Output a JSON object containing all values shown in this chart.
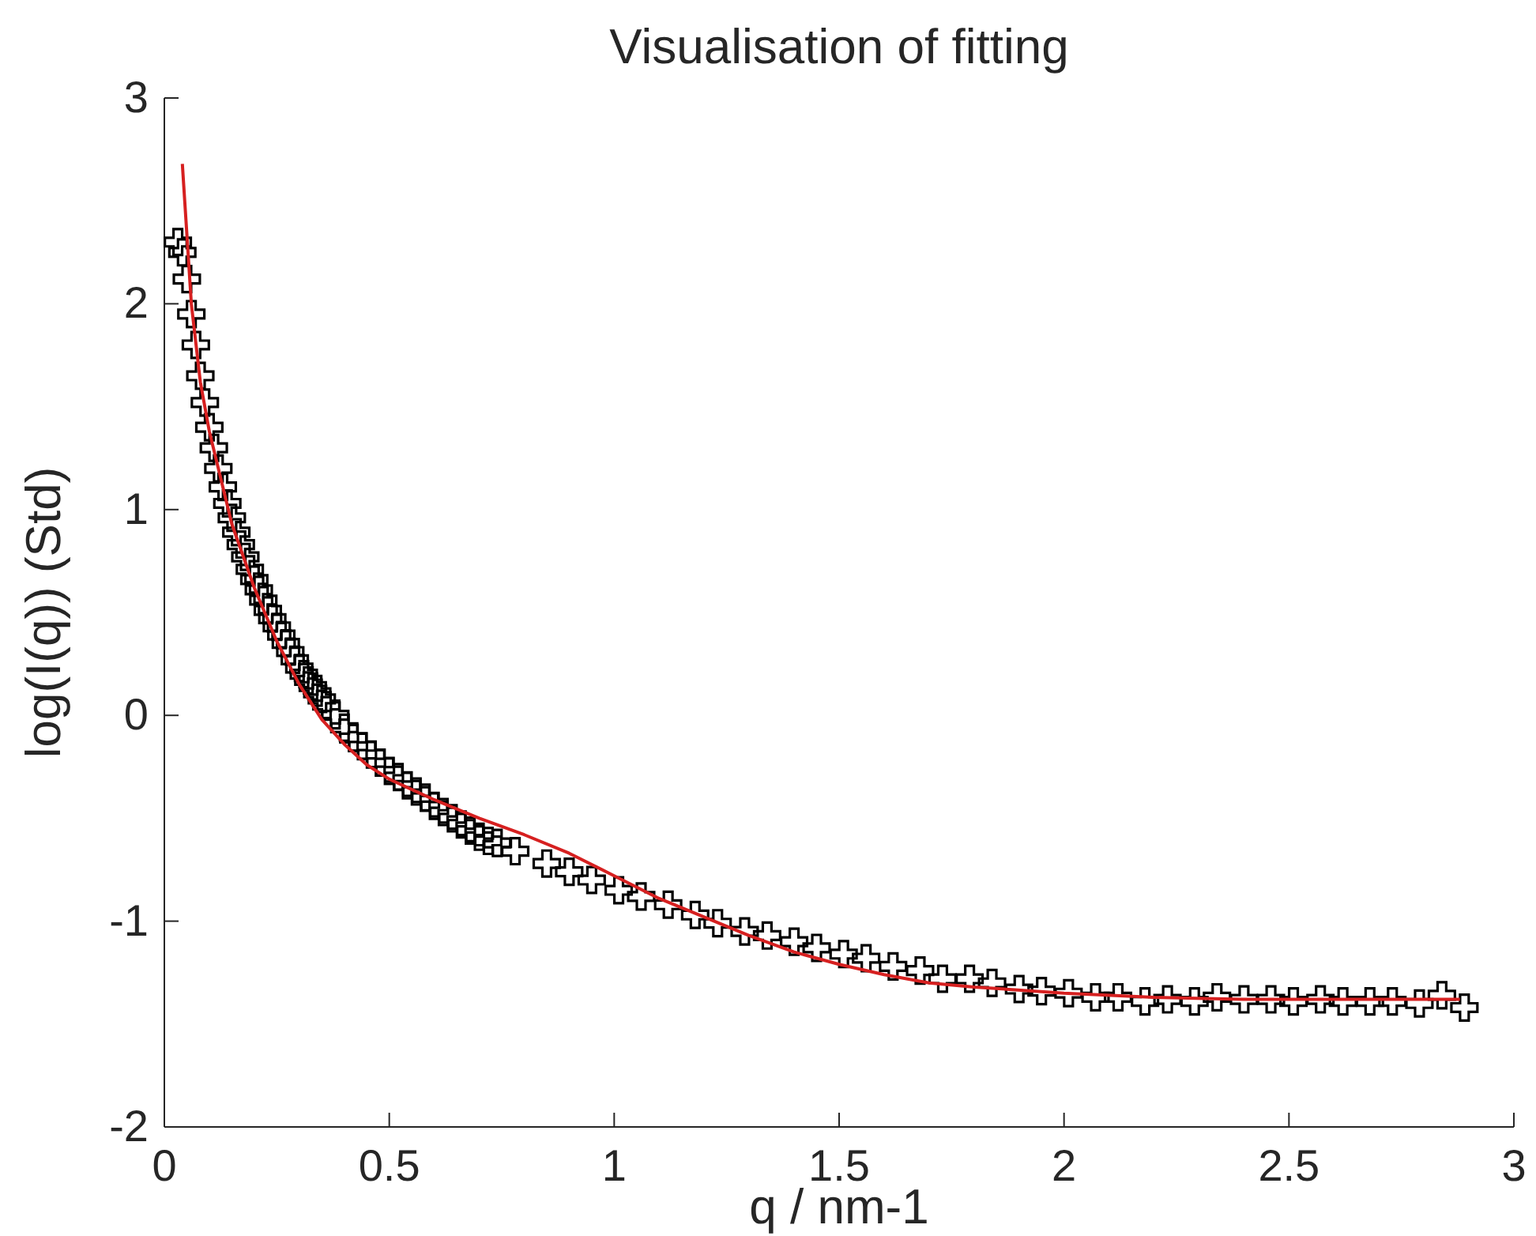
{
  "chart_data": {
    "type": "scatter",
    "title": "Visualisation of fitting",
    "xlabel": "q / nm-1",
    "ylabel": "log(I(q)) (Std)",
    "xlim": [
      0,
      3
    ],
    "ylim": [
      -2,
      3
    ],
    "xticks": [
      0,
      0.5,
      1,
      1.5,
      2,
      2.5,
      3
    ],
    "yticks": [
      -2,
      -1,
      0,
      1,
      2,
      3
    ],
    "grid": false,
    "series": [
      {
        "marker": "cross",
        "color": "#000000",
        "x": [
          0.03,
          0.04,
          0.05,
          0.06,
          0.07,
          0.08,
          0.09,
          0.1,
          0.11,
          0.12,
          0.13,
          0.14,
          0.15,
          0.16,
          0.17,
          0.18,
          0.19,
          0.2,
          0.21,
          0.22,
          0.23,
          0.24,
          0.25,
          0.26,
          0.27,
          0.28,
          0.29,
          0.3,
          0.31,
          0.32,
          0.33,
          0.34,
          0.35,
          0.36,
          0.38,
          0.4,
          0.42,
          0.44,
          0.46,
          0.48,
          0.5,
          0.52,
          0.54,
          0.56,
          0.58,
          0.6,
          0.62,
          0.64,
          0.66,
          0.68,
          0.7,
          0.72,
          0.74,
          0.78,
          0.85,
          0.9,
          0.95,
          1.01,
          1.06,
          1.12,
          1.18,
          1.23,
          1.29,
          1.34,
          1.4,
          1.45,
          1.51,
          1.56,
          1.62,
          1.68,
          1.73,
          1.79,
          1.84,
          1.9,
          1.95,
          2.01,
          2.07,
          2.12,
          2.18,
          2.23,
          2.29,
          2.34,
          2.4,
          2.46,
          2.51,
          2.57,
          2.62,
          2.68,
          2.73,
          2.79,
          2.84,
          2.89
        ],
        "values": [
          2.3,
          2.25,
          2.12,
          1.95,
          1.8,
          1.65,
          1.52,
          1.4,
          1.3,
          1.2,
          1.11,
          1.03,
          0.96,
          0.89,
          0.83,
          0.77,
          0.71,
          0.66,
          0.61,
          0.56,
          0.51,
          0.47,
          0.43,
          0.39,
          0.35,
          0.31,
          0.27,
          0.23,
          0.2,
          0.17,
          0.14,
          0.11,
          0.08,
          0.05,
          0.0,
          -0.06,
          -0.11,
          -0.15,
          -0.19,
          -0.23,
          -0.27,
          -0.3,
          -0.34,
          -0.37,
          -0.4,
          -0.44,
          -0.47,
          -0.5,
          -0.53,
          -0.56,
          -0.59,
          -0.61,
          -0.62,
          -0.66,
          -0.72,
          -0.76,
          -0.8,
          -0.85,
          -0.88,
          -0.92,
          -0.97,
          -1.01,
          -1.05,
          -1.07,
          -1.1,
          -1.13,
          -1.16,
          -1.18,
          -1.22,
          -1.24,
          -1.28,
          -1.28,
          -1.3,
          -1.33,
          -1.34,
          -1.35,
          -1.37,
          -1.37,
          -1.39,
          -1.38,
          -1.39,
          -1.37,
          -1.38,
          -1.38,
          -1.39,
          -1.38,
          -1.39,
          -1.39,
          -1.39,
          -1.4,
          -1.36,
          -1.42
        ]
      },
      {
        "type": "line",
        "marker": "none",
        "color": "#d62020",
        "x": [
          0.04,
          0.06,
          0.08,
          0.1,
          0.15,
          0.2,
          0.25,
          0.3,
          0.35,
          0.4,
          0.45,
          0.5,
          0.6,
          0.7,
          0.8,
          0.9,
          1.0,
          1.1,
          1.2,
          1.3,
          1.4,
          1.5,
          1.6,
          1.7,
          1.8,
          2.0,
          2.2,
          2.4,
          2.6,
          2.8,
          2.88
        ],
        "values": [
          2.68,
          2.0,
          1.62,
          1.38,
          0.93,
          0.62,
          0.36,
          0.15,
          -0.02,
          -0.14,
          -0.24,
          -0.31,
          -0.41,
          -0.5,
          -0.58,
          -0.67,
          -0.78,
          -0.89,
          -0.98,
          -1.07,
          -1.15,
          -1.21,
          -1.26,
          -1.3,
          -1.32,
          -1.35,
          -1.37,
          -1.38,
          -1.38,
          -1.38,
          -1.38
        ]
      }
    ]
  }
}
